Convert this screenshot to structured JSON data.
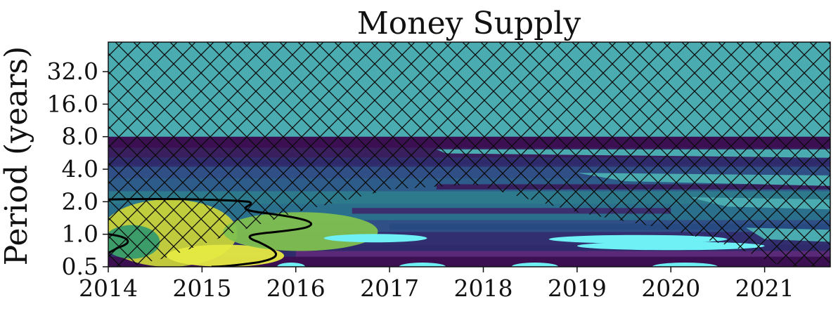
{
  "chart_data": {
    "type": "heatmap",
    "title": "Money Supply",
    "xlabel": "",
    "ylabel": "Period (years)",
    "x_ticks": [
      "2014",
      "2015",
      "2016",
      "2017",
      "2018",
      "2019",
      "2020",
      "2021"
    ],
    "x_tick_values": [
      2014,
      2015,
      2016,
      2017,
      2018,
      2019,
      2020,
      2021
    ],
    "xlim": [
      2014,
      2021.7
    ],
    "y_scale": "log2",
    "y_ticks": [
      "0.5",
      "1.0",
      "2.0",
      "4.0",
      "8.0",
      "16.0",
      "32.0"
    ],
    "y_tick_values": [
      0.5,
      1,
      2,
      4,
      8,
      16,
      32
    ],
    "ylim": [
      0.5,
      60
    ],
    "colormap": [
      "#3b0f52",
      "#2e2a6b",
      "#2f4f86",
      "#2d7a8c",
      "#4aa6ad",
      "#3c9d6b",
      "#8fb948",
      "#d6d934",
      "#e6ea42",
      "#6ff0f5"
    ],
    "cone_of_influence_hatch": true,
    "cone_of_influence_color": "#4aabb0",
    "hatch_color": "#0a0a0a",
    "significance_contour_color": "#000000",
    "power_bands": [
      {
        "period": 7.2,
        "power": "low",
        "color": "#3b0f52"
      },
      {
        "period": 5.0,
        "power": "low",
        "color": "#3a1f5e"
      },
      {
        "period": 3.0,
        "power": "low",
        "color": "#2f4f86"
      },
      {
        "period": 1.5,
        "power": "mid",
        "color": "#2d7a8c"
      },
      {
        "period": 0.85,
        "power": "low",
        "color": "#312f6f"
      },
      {
        "period": 0.55,
        "power": "low",
        "color": "#3b0f52"
      }
    ],
    "high_power_regions": [
      {
        "t_start": 2014.0,
        "t_end": 2015.3,
        "period_min": 0.5,
        "period_max": 2.1,
        "level": "high",
        "color": "#c8d33a"
      },
      {
        "t_start": 2014.7,
        "t_end": 2015.8,
        "period_min": 0.5,
        "period_max": 0.8,
        "level": "max",
        "color": "#e6ea42"
      },
      {
        "t_start": 2015.3,
        "t_end": 2016.8,
        "period_min": 0.7,
        "period_max": 1.6,
        "level": "mid-high",
        "color": "#7fc04f"
      }
    ],
    "minimum_power_streaks": [
      {
        "t_start": 2016.3,
        "t_end": 2017.4,
        "period": 0.92,
        "color": "#6ff0f5"
      },
      {
        "t_start": 2018.7,
        "t_end": 2020.6,
        "period": 0.9,
        "color": "#6ff0f5"
      },
      {
        "t_start": 2019.0,
        "t_end": 2021.0,
        "period": 0.78,
        "color": "#6ff0f5"
      },
      {
        "t_start": 2015.8,
        "t_end": 2016.1,
        "period": 0.5,
        "color": "#6ff0f5"
      },
      {
        "t_start": 2017.1,
        "t_end": 2017.6,
        "period": 0.5,
        "color": "#6ff0f5"
      },
      {
        "t_start": 2018.3,
        "t_end": 2018.8,
        "period": 0.5,
        "color": "#6ff0f5"
      },
      {
        "t_start": 2019.8,
        "t_end": 2020.5,
        "period": 0.5,
        "color": "#6ff0f5"
      }
    ]
  }
}
